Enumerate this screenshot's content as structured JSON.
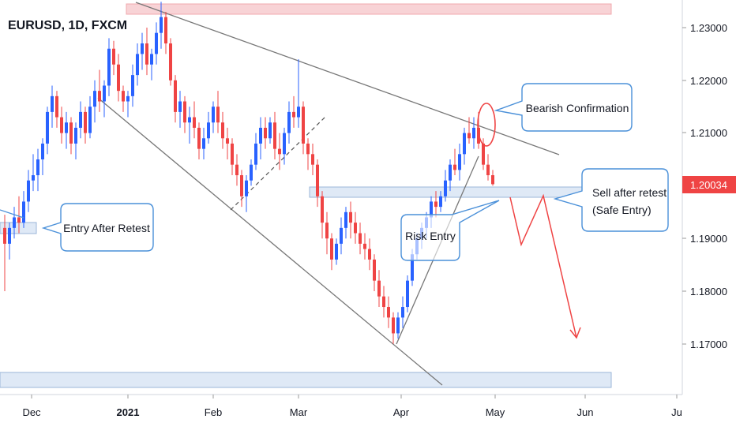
{
  "chart_data": {
    "type": "candlestick",
    "title": "EURUSD, 1D, FXCM",
    "price_ticks": [
      "1.23000",
      "1.22000",
      "1.21000",
      "1.19000",
      "1.18000",
      "1.17000"
    ],
    "last_price": "1.20034",
    "x_ticks": [
      "Dec",
      "2021",
      "Feb",
      "Mar",
      "Apr",
      "May",
      "Jun",
      "Ju"
    ],
    "annotations": [
      {
        "id": "bearish",
        "text": "Bearish Confirmation"
      },
      {
        "id": "entry",
        "text": "Entry After Retest"
      },
      {
        "id": "risk",
        "text": "Risk Entry"
      },
      {
        "id": "sell1",
        "text": "Sell after retest"
      },
      {
        "id": "sell2",
        "text": "(Safe Entry)"
      }
    ],
    "zones": [
      {
        "name": "top-resistance",
        "from": 1.2325,
        "to": 1.2345
      },
      {
        "name": "retest-zone",
        "from": 1.1976,
        "to": 1.1993
      },
      {
        "name": "bottom-support",
        "from": 1.1635,
        "to": 1.1665
      }
    ],
    "candles": [
      [
        1.192,
        1.1945,
        1.18,
        1.189
      ],
      [
        1.189,
        1.193,
        1.186,
        1.192
      ],
      [
        1.192,
        1.196,
        1.19,
        1.194
      ],
      [
        1.194,
        1.198,
        1.191,
        1.193
      ],
      [
        1.193,
        1.199,
        1.192,
        1.197
      ],
      [
        1.197,
        1.203,
        1.195,
        1.201
      ],
      [
        1.201,
        1.206,
        1.199,
        1.202
      ],
      [
        1.202,
        1.207,
        1.199,
        1.205
      ],
      [
        1.205,
        1.209,
        1.202,
        1.208
      ],
      [
        1.208,
        1.215,
        1.206,
        1.214
      ],
      [
        1.214,
        1.219,
        1.211,
        1.217
      ],
      [
        1.217,
        1.218,
        1.211,
        1.213
      ],
      [
        1.213,
        1.215,
        1.208,
        1.21
      ],
      [
        1.21,
        1.214,
        1.207,
        1.212
      ],
      [
        1.212,
        1.213,
        1.206,
        1.208
      ],
      [
        1.208,
        1.212,
        1.205,
        1.211
      ],
      [
        1.211,
        1.216,
        1.209,
        1.214
      ],
      [
        1.214,
        1.215,
        1.208,
        1.21
      ],
      [
        1.21,
        1.217,
        1.209,
        1.215
      ],
      [
        1.215,
        1.22,
        1.212,
        1.218
      ],
      [
        1.218,
        1.222,
        1.214,
        1.216
      ],
      [
        1.216,
        1.22,
        1.213,
        1.219
      ],
      [
        1.219,
        1.228,
        1.217,
        1.226
      ],
      [
        1.226,
        1.2275,
        1.221,
        1.223
      ],
      [
        1.223,
        1.225,
        1.216,
        1.218
      ],
      [
        1.218,
        1.219,
        1.214,
        1.216
      ],
      [
        1.216,
        1.218,
        1.213,
        1.217
      ],
      [
        1.217,
        1.223,
        1.215,
        1.221
      ],
      [
        1.221,
        1.227,
        1.219,
        1.225
      ],
      [
        1.225,
        1.229,
        1.222,
        1.227
      ],
      [
        1.227,
        1.23,
        1.221,
        1.223
      ],
      [
        1.223,
        1.226,
        1.22,
        1.225
      ],
      [
        1.225,
        1.231,
        1.223,
        1.229
      ],
      [
        1.229,
        1.2349,
        1.226,
        1.232
      ],
      [
        1.232,
        1.233,
        1.225,
        1.227
      ],
      [
        1.227,
        1.228,
        1.219,
        1.22
      ],
      [
        1.22,
        1.221,
        1.212,
        1.214
      ],
      [
        1.214,
        1.218,
        1.211,
        1.216
      ],
      [
        1.216,
        1.217,
        1.21,
        1.212
      ],
      [
        1.212,
        1.215,
        1.208,
        1.213
      ],
      [
        1.213,
        1.216,
        1.209,
        1.211
      ],
      [
        1.211,
        1.212,
        1.205,
        1.207
      ],
      [
        1.207,
        1.211,
        1.205,
        1.209
      ],
      [
        1.209,
        1.214,
        1.208,
        1.212
      ],
      [
        1.212,
        1.216,
        1.21,
        1.215
      ],
      [
        1.215,
        1.218,
        1.21,
        1.212
      ],
      [
        1.212,
        1.214,
        1.207,
        1.209
      ],
      [
        1.209,
        1.211,
        1.205,
        1.208
      ],
      [
        1.208,
        1.209,
        1.202,
        1.204
      ],
      [
        1.204,
        1.206,
        1.2,
        1.202
      ],
      [
        1.202,
        1.203,
        1.196,
        1.198
      ],
      [
        1.198,
        1.202,
        1.195,
        1.201
      ],
      [
        1.201,
        1.205,
        1.2,
        1.204
      ],
      [
        1.204,
        1.21,
        1.203,
        1.208
      ],
      [
        1.208,
        1.213,
        1.205,
        1.211
      ],
      [
        1.211,
        1.213,
        1.207,
        1.209
      ],
      [
        1.209,
        1.213,
        1.208,
        1.212
      ],
      [
        1.212,
        1.214,
        1.205,
        1.207
      ],
      [
        1.207,
        1.21,
        1.203,
        1.206
      ],
      [
        1.206,
        1.211,
        1.204,
        1.21
      ],
      [
        1.21,
        1.216,
        1.208,
        1.214
      ],
      [
        1.214,
        1.217,
        1.211,
        1.213
      ],
      [
        1.213,
        1.224,
        1.211,
        1.215
      ],
      [
        1.215,
        1.216,
        1.206,
        1.208
      ],
      [
        1.208,
        1.209,
        1.203,
        1.206
      ],
      [
        1.206,
        1.208,
        1.202,
        1.204
      ],
      [
        1.204,
        1.205,
        1.196,
        1.198
      ],
      [
        1.198,
        1.199,
        1.19,
        1.193
      ],
      [
        1.193,
        1.195,
        1.187,
        1.19
      ],
      [
        1.19,
        1.191,
        1.184,
        1.186
      ],
      [
        1.186,
        1.19,
        1.185,
        1.189
      ],
      [
        1.189,
        1.194,
        1.187,
        1.192
      ],
      [
        1.192,
        1.196,
        1.19,
        1.195
      ],
      [
        1.195,
        1.197,
        1.19,
        1.193
      ],
      [
        1.193,
        1.195,
        1.189,
        1.191
      ],
      [
        1.191,
        1.193,
        1.187,
        1.189
      ],
      [
        1.189,
        1.191,
        1.186,
        1.188
      ],
      [
        1.188,
        1.19,
        1.184,
        1.186
      ],
      [
        1.186,
        1.187,
        1.18,
        1.182
      ],
      [
        1.182,
        1.184,
        1.177,
        1.179
      ],
      [
        1.179,
        1.181,
        1.175,
        1.177
      ],
      [
        1.177,
        1.179,
        1.173,
        1.175
      ],
      [
        1.175,
        1.176,
        1.17,
        1.172
      ],
      [
        1.172,
        1.176,
        1.171,
        1.175
      ],
      [
        1.175,
        1.179,
        1.173,
        1.177
      ],
      [
        1.177,
        1.183,
        1.176,
        1.182
      ],
      [
        1.182,
        1.188,
        1.181,
        1.187
      ],
      [
        1.187,
        1.191,
        1.186,
        1.19
      ],
      [
        1.19,
        1.193,
        1.188,
        1.192
      ],
      [
        1.192,
        1.195,
        1.19,
        1.194
      ],
      [
        1.194,
        1.198,
        1.192,
        1.197
      ],
      [
        1.197,
        1.199,
        1.194,
        1.196
      ],
      [
        1.196,
        1.199,
        1.195,
        1.198
      ],
      [
        1.198,
        1.203,
        1.197,
        1.201
      ],
      [
        1.201,
        1.205,
        1.199,
        1.204
      ],
      [
        1.204,
        1.207,
        1.202,
        1.203
      ],
      [
        1.203,
        1.208,
        1.201,
        1.206
      ],
      [
        1.206,
        1.211,
        1.204,
        1.21
      ],
      [
        1.21,
        1.213,
        1.208,
        1.209
      ],
      [
        1.209,
        1.213,
        1.207,
        1.211
      ],
      [
        1.211,
        1.214,
        1.207,
        1.208
      ],
      [
        1.208,
        1.209,
        1.203,
        1.204
      ],
      [
        1.204,
        1.206,
        1.201,
        1.202
      ],
      [
        1.202,
        1.203,
        1.2,
        1.2003
      ]
    ]
  }
}
